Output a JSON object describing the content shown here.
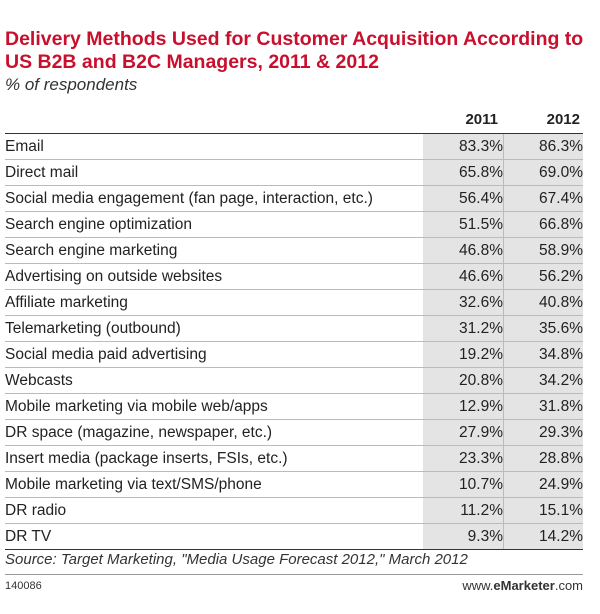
{
  "chart_data": {
    "type": "table",
    "title": "Delivery Methods Used for Customer Acquisition According to US B2B and B2C Managers, 2011 & 2012",
    "subtitle": "% of respondents",
    "columns": [
      "2011",
      "2012"
    ],
    "rows": [
      {
        "label": "Email",
        "v2011": "83.3%",
        "v2012": "86.3%"
      },
      {
        "label": "Direct mail",
        "v2011": "65.8%",
        "v2012": "69.0%"
      },
      {
        "label": "Social media engagement (fan page, interaction, etc.)",
        "v2011": "56.4%",
        "v2012": "67.4%"
      },
      {
        "label": "Search engine optimization",
        "v2011": "51.5%",
        "v2012": "66.8%"
      },
      {
        "label": "Search engine marketing",
        "v2011": "46.8%",
        "v2012": "58.9%"
      },
      {
        "label": "Advertising on outside websites",
        "v2011": "46.6%",
        "v2012": "56.2%"
      },
      {
        "label": "Affiliate marketing",
        "v2011": "32.6%",
        "v2012": "40.8%"
      },
      {
        "label": "Telemarketing (outbound)",
        "v2011": "31.2%",
        "v2012": "35.6%"
      },
      {
        "label": "Social media paid advertising",
        "v2011": "19.2%",
        "v2012": "34.8%"
      },
      {
        "label": "Webcasts",
        "v2011": "20.8%",
        "v2012": "34.2%"
      },
      {
        "label": "Mobile marketing via mobile web/apps",
        "v2011": "12.9%",
        "v2012": "31.8%"
      },
      {
        "label": "DR space (magazine, newspaper, etc.)",
        "v2011": "27.9%",
        "v2012": "29.3%"
      },
      {
        "label": "Insert media (package inserts, FSIs, etc.)",
        "v2011": "23.3%",
        "v2012": "28.8%"
      },
      {
        "label": "Mobile marketing via text/SMS/phone",
        "v2011": "10.7%",
        "v2012": "24.9%"
      },
      {
        "label": "DR radio",
        "v2011": "11.2%",
        "v2012": "15.1%"
      },
      {
        "label": "DR TV",
        "v2011": "9.3%",
        "v2012": "14.2%"
      }
    ],
    "source": "Source: Target Marketing, \"Media Usage Forecast 2012,\" March 2012",
    "chart_id": "140086",
    "brand_prefix": "www.",
    "brand_name": "eMarketer",
    "brand_suffix": ".com"
  },
  "colors": {
    "title": "#c8102e",
    "shade": "#e4e4e4"
  }
}
